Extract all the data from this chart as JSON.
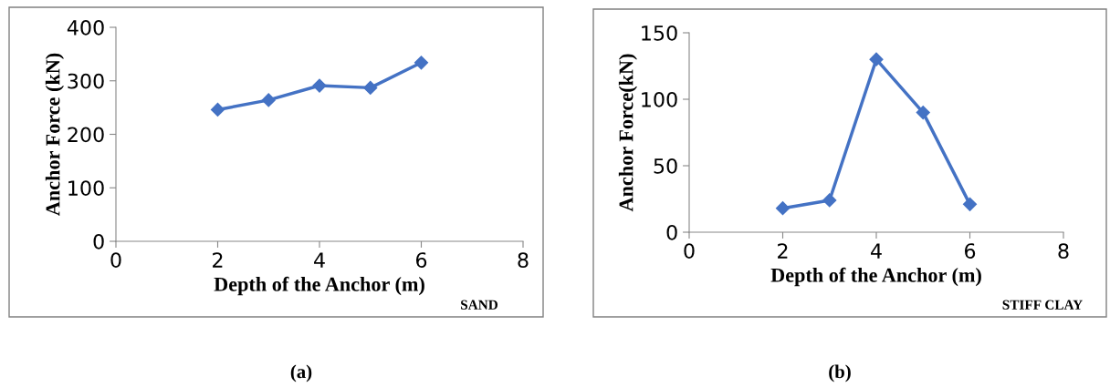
{
  "chart_data": [
    {
      "type": "line",
      "x": [
        2,
        3,
        4,
        5,
        6
      ],
      "values": [
        246,
        264,
        291,
        287,
        334
      ],
      "color": "#4472c4",
      "xlabel": "Depth of the Anchor (m)",
      "ylabel": "Anchor Force (kN)",
      "xlim": [
        0,
        8
      ],
      "xticks": [
        0,
        2,
        4,
        6,
        8
      ],
      "ylim": [
        0,
        400
      ],
      "yticks": [
        0,
        100,
        200,
        300,
        400
      ],
      "marker": "diamond",
      "line_style": "solid",
      "grid": false,
      "legend": false,
      "annotations": [
        "SAND",
        "(a)"
      ]
    },
    {
      "type": "line",
      "x": [
        2,
        3,
        4,
        5,
        6
      ],
      "values": [
        18,
        24,
        130,
        90,
        21
      ],
      "color": "#4472c4",
      "xlabel": "Depth of the Anchor (m)",
      "ylabel": "Anchor Force(kN)",
      "xlim": [
        0,
        8
      ],
      "xticks": [
        0,
        2,
        4,
        6,
        8
      ],
      "ylim": [
        0,
        150
      ],
      "yticks": [
        0,
        50,
        100,
        150
      ],
      "marker": "diamond",
      "line_style": "solid",
      "grid": false,
      "legend": false,
      "annotations": [
        "STIFF CLAY",
        "(b)"
      ]
    }
  ]
}
